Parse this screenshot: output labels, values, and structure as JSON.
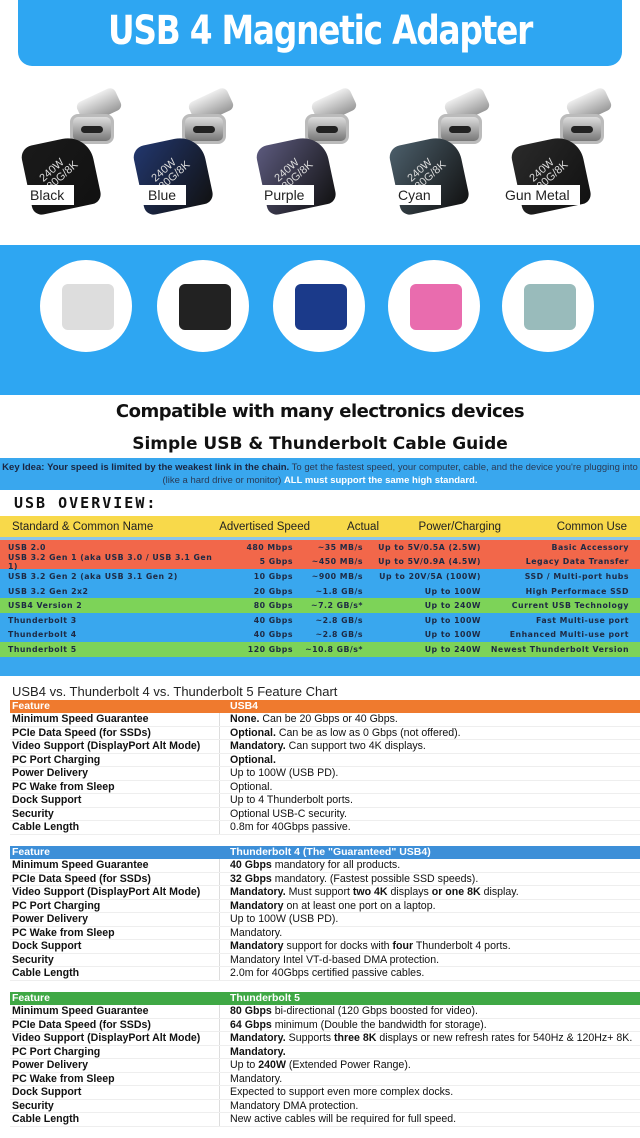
{
  "title": "USB 4 Magnetic Adapter",
  "products": [
    {
      "label": "Black",
      "color": "#1a1a1a",
      "print": "240W 80G/8K"
    },
    {
      "label": "Blue",
      "color": "#22376e",
      "print": "240W 80G/8K"
    },
    {
      "label": "Purple",
      "color": "#5c5a7e",
      "print": "240W 80G/8K"
    },
    {
      "label": "Cyan",
      "color": "#4c5f6b",
      "print": "240W 80G/8K"
    },
    {
      "label": "Gun Metal",
      "color": "#2a2a2a",
      "print": "240W 80G/8K"
    }
  ],
  "devices": [
    "game-console",
    "handheld-console",
    "smart-tv",
    "tablet",
    "laptop"
  ],
  "compat_title": "Compatible with many electronics devices",
  "guide_title": "Simple USB & Thunderbolt Cable Guide",
  "key_idea": {
    "label": "Key Idea:",
    "bold": "Your speed is limited by the weakest link in the chain.",
    "text": " To get the fastest speed, your computer, cable, and the device you're plugging into (like a hard drive or monitor) ",
    "highlight": "ALL must support the same high standard."
  },
  "overview": {
    "title": "USB OVERVIEW:",
    "headers": [
      "Standard & Common Name",
      "Advertised Speed",
      "Actual",
      "Power/Charging",
      "Common Use"
    ],
    "rows": [
      [
        "USB 2.0",
        "480 Mbps",
        "~35 MB/s",
        "Up to 5V/0.5A (2.5W)",
        "Basic Accessory"
      ],
      [
        "USB 3.2 Gen 1 (aka USB 3.0 / USB 3.1 Gen 1)",
        "5 Gbps",
        "~450 MB/s",
        "Up to 5V/0.9A (4.5W)",
        "Legacy Data Transfer"
      ],
      [
        "USB 3.2 Gen 2 (aka USB 3.1 Gen 2)",
        "10 Gbps",
        "~900 MB/s",
        "Up to 20V/5A (100W)",
        "SSD / Multi-port hubs"
      ],
      [
        "USB 3.2 Gen 2x2",
        "20 Gbps",
        "~1.8 GB/s",
        "Up to 100W",
        "High Performace SSD"
      ],
      [
        "USB4 Version 2",
        "80 Gbps",
        "~7.2 GB/s*",
        "Up to 240W",
        "Current USB Technology"
      ],
      [
        "Thunderbolt 3",
        "40 Gbps",
        "~2.8 GB/s",
        "Up to 100W",
        "Fast Multi-use port"
      ],
      [
        "Thunderbolt 4",
        "40 Gbps",
        "~2.8 GB/s",
        "Up to 100W",
        "Enhanced Multi-use port"
      ],
      [
        "Thunderbolt 5",
        "120 Gbps",
        "~10.8 GB/s*",
        "Up to 240W",
        "Newest Thunderbolt Version"
      ]
    ],
    "row_colors": [
      "#f2674a",
      "#f2674a",
      "#39a7ee",
      "#39a7ee",
      "#7dd358",
      "#39a7ee",
      "#39a7ee",
      "#7dd358"
    ]
  },
  "features": {
    "title": "USB4 vs. Thunderbolt 4 vs. Thunderbolt 5 Feature Chart",
    "labels": [
      "Minimum Speed Guarantee",
      "PCIe Data Speed (for SSDs)",
      "Video Support (DisplayPort Alt Mode)",
      "PC Port Charging",
      "Power Delivery",
      "PC Wake from Sleep",
      "Dock Support",
      "Security",
      "Cable Length"
    ],
    "sections": [
      {
        "h1": "Feature",
        "h2": "USB4",
        "color": "#ef7a2e",
        "values": [
          [
            {
              "b": "None."
            },
            {
              "t": " Can be 20 Gbps or 40 Gbps."
            }
          ],
          [
            {
              "b": "Optional."
            },
            {
              "t": " Can be as low as 0 Gbps (not offered)."
            }
          ],
          [
            {
              "b": "Mandatory."
            },
            {
              "t": " Can support two 4K displays."
            }
          ],
          [
            {
              "b": "Optional."
            }
          ],
          [
            {
              "t": "Up to 100W (USB PD)."
            }
          ],
          [
            {
              "t": "Optional."
            }
          ],
          [
            {
              "t": "Up to 4 Thunderbolt ports."
            }
          ],
          [
            {
              "t": "Optional USB-C security."
            }
          ],
          [
            {
              "t": "0.8m for 40Gbps passive."
            }
          ]
        ]
      },
      {
        "h1": "Feature",
        "h2": "Thunderbolt 4 (The \"Guaranteed\" USB4)",
        "color": "#3d8fd8",
        "values": [
          [
            {
              "b": "40 Gbps"
            },
            {
              "t": " mandatory for all products."
            }
          ],
          [
            {
              "b": "32 Gbps"
            },
            {
              "t": " mandatory. (Fastest possible SSD speeds)."
            }
          ],
          [
            {
              "b": "Mandatory."
            },
            {
              "t": " Must support "
            },
            {
              "b": "two 4K"
            },
            {
              "t": " displays "
            },
            {
              "b": "or one 8K"
            },
            {
              "t": " display."
            }
          ],
          [
            {
              "b": "Mandatory"
            },
            {
              "t": " on at least one port on a laptop."
            }
          ],
          [
            {
              "t": "Up to 100W (USB PD)."
            }
          ],
          [
            {
              "t": "Mandatory."
            }
          ],
          [
            {
              "b": "Mandatory"
            },
            {
              "t": " support for docks with "
            },
            {
              "b": "four"
            },
            {
              "t": " Thunderbolt 4 ports."
            }
          ],
          [
            {
              "t": "Mandatory Intel VT-d-based DMA protection."
            }
          ],
          [
            {
              "t": "2.0m for 40Gbps certified passive cables."
            }
          ]
        ]
      },
      {
        "h1": "Feature",
        "h2": "Thunderbolt 5",
        "color": "#3fa845",
        "values": [
          [
            {
              "b": "80 Gbps"
            },
            {
              "t": " bi-directional (120 Gbps boosted for video)."
            }
          ],
          [
            {
              "b": "64 Gbps"
            },
            {
              "t": " minimum (Double the bandwidth for storage)."
            }
          ],
          [
            {
              "b": "Mandatory."
            },
            {
              "t": " Supports "
            },
            {
              "b": "three 8K"
            },
            {
              "t": " displays or new refresh rates for 540Hz & 120Hz+ 8K."
            }
          ],
          [
            {
              "b": "Mandatory."
            }
          ],
          [
            {
              "t": "Up to "
            },
            {
              "b": "240W"
            },
            {
              "t": " (Extended Power Range)."
            }
          ],
          [
            {
              "t": "Mandatory."
            }
          ],
          [
            {
              "t": "Expected to support even more complex docks."
            }
          ],
          [
            {
              "t": "Mandatory DMA protection."
            }
          ],
          [
            {
              "t": "New active cables will be required for full speed."
            }
          ]
        ]
      }
    ]
  }
}
